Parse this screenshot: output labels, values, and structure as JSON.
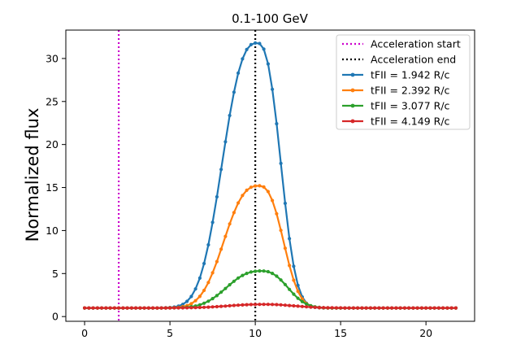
{
  "chart_data": {
    "type": "line",
    "title": "0.1-100 GeV",
    "xlabel": "",
    "ylabel": "Normalized flux",
    "xlim": [
      -1.1,
      22.85
    ],
    "ylim": [
      -0.55,
      33.3
    ],
    "xticks": [
      0,
      5,
      10,
      15,
      20
    ],
    "yticks": [
      0,
      5,
      10,
      15,
      20,
      25,
      30
    ],
    "grid": false,
    "legend_position": "upper right",
    "vlines": [
      {
        "name": "Acceleration start",
        "x": 2,
        "color": "#cc00cc",
        "style": "dotted"
      },
      {
        "name": "Acceleration end",
        "x": 10,
        "color": "#000000",
        "style": "dotted"
      }
    ],
    "x_sampling": {
      "start": 0,
      "stop": 21.8,
      "step": 0.25
    },
    "series": [
      {
        "name": "tFII = 1.942 R/c",
        "color": "#1f77b4",
        "baseline": 1.0,
        "peak_x": 10.1,
        "peak_y": 31.8,
        "width_left": 1.9,
        "width_right": 1.3,
        "power": 2.6
      },
      {
        "name": "tFII = 2.392 R/c",
        "color": "#ff7f0e",
        "baseline": 1.0,
        "peak_x": 10.2,
        "peak_y": 15.2,
        "width_left": 1.9,
        "width_right": 1.35,
        "power": 2.6
      },
      {
        "name": "tFII = 3.077 R/c",
        "color": "#2ca02c",
        "baseline": 1.0,
        "peak_x": 10.35,
        "peak_y": 5.3,
        "width_left": 1.9,
        "width_right": 1.45,
        "power": 2.5
      },
      {
        "name": "tFII = 4.149 R/c",
        "color": "#d62728",
        "baseline": 1.0,
        "peak_x": 10.5,
        "peak_y": 1.42,
        "width_left": 2.0,
        "width_right": 1.7,
        "power": 2.2
      }
    ]
  }
}
